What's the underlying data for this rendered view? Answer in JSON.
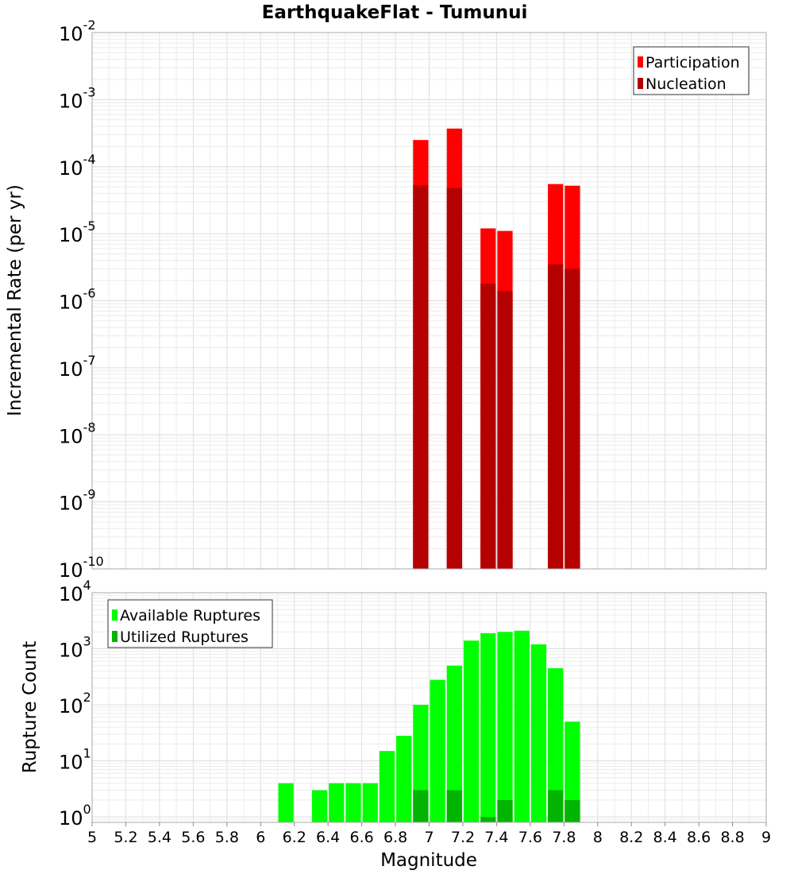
{
  "chart_data": [
    {
      "type": "bar",
      "title": "EarthquakeFlat - Tumunui",
      "xlabel": "Magnitude",
      "ylabel": "Incremental Rate (per yr)",
      "yscale": "log",
      "xlim": [
        5,
        9
      ],
      "ylim": [
        1e-10,
        0.01
      ],
      "grid": true,
      "legend_position": "top-right",
      "series": [
        {
          "name": "Participation",
          "color": "#ff0000",
          "x": [
            6.95,
            7.15,
            7.35,
            7.45,
            7.75,
            7.85
          ],
          "values": [
            0.00025,
            0.00037,
            1.2e-05,
            1.1e-05,
            5.5e-05,
            5.2e-05
          ]
        },
        {
          "name": "Nucleation",
          "color": "#b40000",
          "x": [
            6.95,
            7.15,
            7.35,
            7.45,
            7.75,
            7.85
          ],
          "values": [
            5.3e-05,
            4.8e-05,
            1.8e-06,
            1.4e-06,
            3.5e-06,
            3e-06
          ]
        }
      ]
    },
    {
      "type": "bar",
      "xlabel": "Magnitude",
      "ylabel": "Rupture Count",
      "yscale": "log",
      "xlim": [
        5,
        9
      ],
      "ylim": [
        0.8,
        10000
      ],
      "grid": true,
      "legend_position": "top-left",
      "series": [
        {
          "name": "Available Ruptures",
          "color": "#00ff00",
          "x": [
            6.15,
            6.35,
            6.45,
            6.55,
            6.65,
            6.75,
            6.85,
            6.95,
            7.05,
            7.15,
            7.25,
            7.35,
            7.45,
            7.55,
            7.65,
            7.75,
            7.85
          ],
          "values": [
            4,
            3,
            4,
            4,
            4,
            15,
            28,
            100,
            280,
            500,
            1400,
            1900,
            2000,
            2100,
            1200,
            450,
            50
          ]
        },
        {
          "name": "Utilized Ruptures",
          "color": "#00b400",
          "x": [
            6.95,
            7.15,
            7.35,
            7.45,
            7.75,
            7.85
          ],
          "values": [
            3,
            3,
            1,
            2,
            3,
            2
          ]
        }
      ]
    }
  ],
  "top_ticks": [
    {
      "base": "10",
      "exp": "-10"
    },
    {
      "base": "10",
      "exp": "-9"
    },
    {
      "base": "10",
      "exp": "-8"
    },
    {
      "base": "10",
      "exp": "-7"
    },
    {
      "base": "10",
      "exp": "-6"
    },
    {
      "base": "10",
      "exp": "-5"
    },
    {
      "base": "10",
      "exp": "-4"
    },
    {
      "base": "10",
      "exp": "-3"
    },
    {
      "base": "10",
      "exp": "-2"
    }
  ],
  "bottom_ticks": [
    {
      "base": "10",
      "exp": "0"
    },
    {
      "base": "10",
      "exp": "1"
    },
    {
      "base": "10",
      "exp": "2"
    },
    {
      "base": "10",
      "exp": "3"
    },
    {
      "base": "10",
      "exp": "4"
    }
  ],
  "x_ticks": [
    "5",
    "5.2",
    "5.4",
    "5.6",
    "5.8",
    "6",
    "6.2",
    "6.4",
    "6.6",
    "6.8",
    "7",
    "7.2",
    "7.4",
    "7.6",
    "7.8",
    "8",
    "8.2",
    "8.4",
    "8.6",
    "8.8",
    "9"
  ]
}
